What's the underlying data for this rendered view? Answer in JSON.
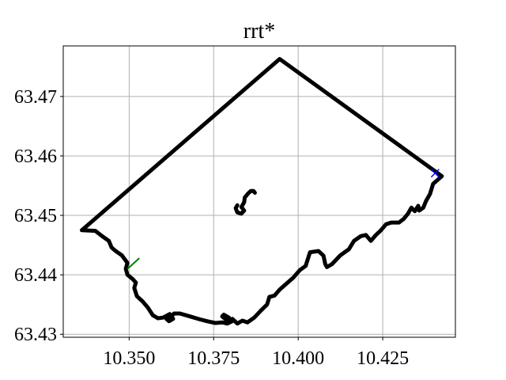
{
  "chart_data": {
    "type": "line",
    "title": "rrt*",
    "xlabel": "",
    "ylabel": "",
    "xlim": [
      10.3305,
      10.4465
    ],
    "ylim": [
      63.4295,
      63.4785
    ],
    "grid": true,
    "x_ticks": [
      10.35,
      10.375,
      10.4,
      10.425
    ],
    "x_tick_labels": [
      "10.350",
      "10.375",
      "10.400",
      "10.425"
    ],
    "y_ticks": [
      63.43,
      63.44,
      63.45,
      63.46,
      63.47
    ],
    "y_tick_labels": [
      "63.43",
      "63.44",
      "63.45",
      "63.46",
      "63.47"
    ],
    "boundary": {
      "color": "#000000",
      "points": [
        [
          10.3945,
          63.4763
        ],
        [
          10.4425,
          63.4566
        ],
        [
          10.4399,
          63.4553
        ],
        [
          10.439,
          63.4536
        ],
        [
          10.4378,
          63.4524
        ],
        [
          10.437,
          63.4513
        ],
        [
          10.4358,
          63.4508
        ],
        [
          10.4355,
          63.4516
        ],
        [
          10.4345,
          63.4507
        ],
        [
          10.4335,
          63.4513
        ],
        [
          10.4325,
          63.4503
        ],
        [
          10.4312,
          63.4494
        ],
        [
          10.4298,
          63.4488
        ],
        [
          10.4275,
          63.4488
        ],
        [
          10.426,
          63.4485
        ],
        [
          10.4245,
          63.4475
        ],
        [
          10.423,
          63.4467
        ],
        [
          10.4215,
          63.4457
        ],
        [
          10.42,
          63.4467
        ],
        [
          10.4185,
          63.4465
        ],
        [
          10.4165,
          63.4457
        ],
        [
          10.415,
          63.4443
        ],
        [
          10.4125,
          63.4433
        ],
        [
          10.41,
          63.4418
        ],
        [
          10.4085,
          63.4413
        ],
        [
          10.408,
          63.4418
        ],
        [
          10.4075,
          63.4432
        ],
        [
          10.406,
          63.444
        ],
        [
          10.4035,
          63.4438
        ],
        [
          10.4022,
          63.4415
        ],
        [
          10.4005,
          63.4408
        ],
        [
          10.3985,
          63.4395
        ],
        [
          10.3965,
          63.4385
        ],
        [
          10.3945,
          63.4375
        ],
        [
          10.393,
          63.4365
        ],
        [
          10.3915,
          63.4363
        ],
        [
          10.3908,
          63.435
        ],
        [
          10.389,
          63.434
        ],
        [
          10.387,
          63.4328
        ],
        [
          10.385,
          63.432
        ],
        [
          10.3835,
          63.4323
        ],
        [
          10.382,
          63.4318
        ],
        [
          10.3805,
          63.4326
        ],
        [
          10.38,
          63.4322
        ],
        [
          10.3795,
          63.4328
        ],
        [
          10.378,
          63.4333
        ],
        [
          10.3775,
          63.433
        ],
        [
          10.379,
          63.4323
        ],
        [
          10.3805,
          63.4322
        ],
        [
          10.379,
          63.4318
        ],
        [
          10.3775,
          63.432
        ],
        [
          10.3755,
          63.4319
        ],
        [
          10.373,
          63.4322
        ],
        [
          10.371,
          63.4325
        ],
        [
          10.368,
          63.433
        ],
        [
          10.365,
          63.4335
        ],
        [
          10.3633,
          63.4335
        ],
        [
          10.3625,
          63.433
        ],
        [
          10.361,
          63.4326
        ],
        [
          10.3618,
          63.4322
        ],
        [
          10.363,
          63.4326
        ],
        [
          10.362,
          63.4334
        ],
        [
          10.36,
          63.4328
        ],
        [
          10.3585,
          63.4327
        ],
        [
          10.357,
          63.4332
        ],
        [
          10.3555,
          63.4345
        ],
        [
          10.354,
          63.4355
        ],
        [
          10.3523,
          63.4364
        ],
        [
          10.3515,
          63.4378
        ],
        [
          10.352,
          63.4387
        ],
        [
          10.351,
          63.4393
        ],
        [
          10.3495,
          63.44
        ],
        [
          10.349,
          63.441
        ],
        [
          10.3495,
          63.442
        ],
        [
          10.3478,
          63.4433
        ],
        [
          10.346,
          63.444
        ],
        [
          10.3448,
          63.4446
        ],
        [
          10.344,
          63.4457
        ],
        [
          10.342,
          63.4465
        ],
        [
          10.34,
          63.4474
        ],
        [
          10.336,
          63.4475
        ],
        [
          10.3945,
          63.4763
        ]
      ]
    },
    "island": {
      "color": "#000000",
      "points": [
        [
          10.382,
          63.4517
        ],
        [
          10.3815,
          63.4512
        ],
        [
          10.382,
          63.4505
        ],
        [
          10.3832,
          63.4503
        ],
        [
          10.384,
          63.4508
        ],
        [
          10.3832,
          63.4514
        ],
        [
          10.384,
          63.4522
        ],
        [
          10.3842,
          63.453
        ],
        [
          10.3852,
          63.4537
        ],
        [
          10.386,
          63.4541
        ],
        [
          10.3868,
          63.4541
        ],
        [
          10.3872,
          63.4538
        ]
      ]
    },
    "start_marker": {
      "x": 10.4405,
      "y": 63.4571,
      "symbol": "x",
      "color": "#0000ff"
    },
    "path_segment": {
      "color": "#008000",
      "points": [
        [
          10.3495,
          63.441
        ],
        [
          10.353,
          63.4428
        ]
      ]
    }
  }
}
